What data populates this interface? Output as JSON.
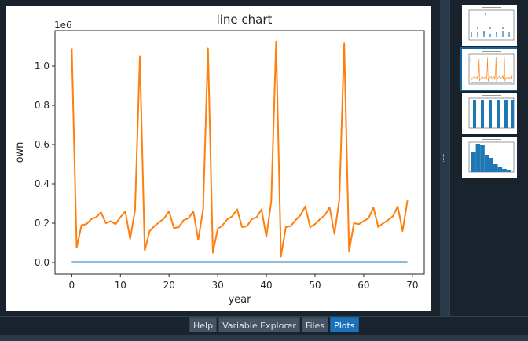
{
  "chart_data": {
    "type": "line",
    "title": "line chart",
    "xlabel": "year",
    "ylabel": "own",
    "offset_text": "1e6",
    "xlim": [
      -3.45,
      72.45
    ],
    "ylim": [
      -60000,
      1180000
    ],
    "xticks": [
      0,
      10,
      20,
      30,
      40,
      50,
      60,
      70
    ],
    "xtick_labels": [
      "0",
      "10",
      "20",
      "30",
      "40",
      "50",
      "60",
      "70"
    ],
    "yticks": [
      0,
      200000,
      400000,
      600000,
      800000,
      1000000
    ],
    "ytick_labels": [
      "0.0",
      "0.2",
      "0.4",
      "0.6",
      "0.8",
      "1.0"
    ],
    "grid": false,
    "series": [
      {
        "color": "#1f77b4",
        "x": [
          0,
          69
        ],
        "y": [
          2000,
          2000
        ]
      },
      {
        "color": "#ff7f0e",
        "x": [
          0,
          1,
          2,
          3,
          4,
          5,
          6,
          7,
          8,
          9,
          10,
          11,
          12,
          13,
          14,
          15,
          16,
          17,
          18,
          19,
          20,
          21,
          22,
          23,
          24,
          25,
          26,
          27,
          28,
          29,
          30,
          31,
          32,
          33,
          34,
          35,
          36,
          37,
          38,
          39,
          40,
          41,
          42,
          43,
          44,
          45,
          46,
          47,
          48,
          49,
          50,
          51,
          52,
          53,
          54,
          55,
          56,
          57,
          58,
          59,
          60,
          61,
          62,
          63,
          64,
          65,
          66,
          67,
          68,
          69
        ],
        "y": [
          1090000,
          75000,
          190000,
          195000,
          220000,
          230000,
          255000,
          200000,
          210000,
          195000,
          230000,
          260000,
          120000,
          265000,
          1050000,
          60000,
          160000,
          185000,
          205000,
          225000,
          260000,
          175000,
          180000,
          215000,
          225000,
          260000,
          115000,
          270000,
          1090000,
          50000,
          170000,
          190000,
          220000,
          235000,
          270000,
          180000,
          185000,
          220000,
          230000,
          270000,
          130000,
          310000,
          1125000,
          30000,
          180000,
          185000,
          215000,
          240000,
          285000,
          180000,
          195000,
          220000,
          240000,
          280000,
          145000,
          320000,
          1115000,
          55000,
          200000,
          195000,
          210000,
          225000,
          280000,
          180000,
          200000,
          215000,
          235000,
          285000,
          160000,
          315000
        ]
      }
    ]
  },
  "thumbnails": [
    {
      "id": 1,
      "kind": "scatter",
      "selected": false
    },
    {
      "id": 2,
      "kind": "line",
      "selected": true
    },
    {
      "id": 3,
      "kind": "bar",
      "selected": false
    },
    {
      "id": 4,
      "kind": "histogram",
      "selected": false
    }
  ],
  "bottom_tabs": [
    {
      "label": "Help",
      "active": false
    },
    {
      "label": "Variable Explorer",
      "active": false
    },
    {
      "label": "Files",
      "active": false
    },
    {
      "label": "Plots",
      "active": true
    }
  ]
}
